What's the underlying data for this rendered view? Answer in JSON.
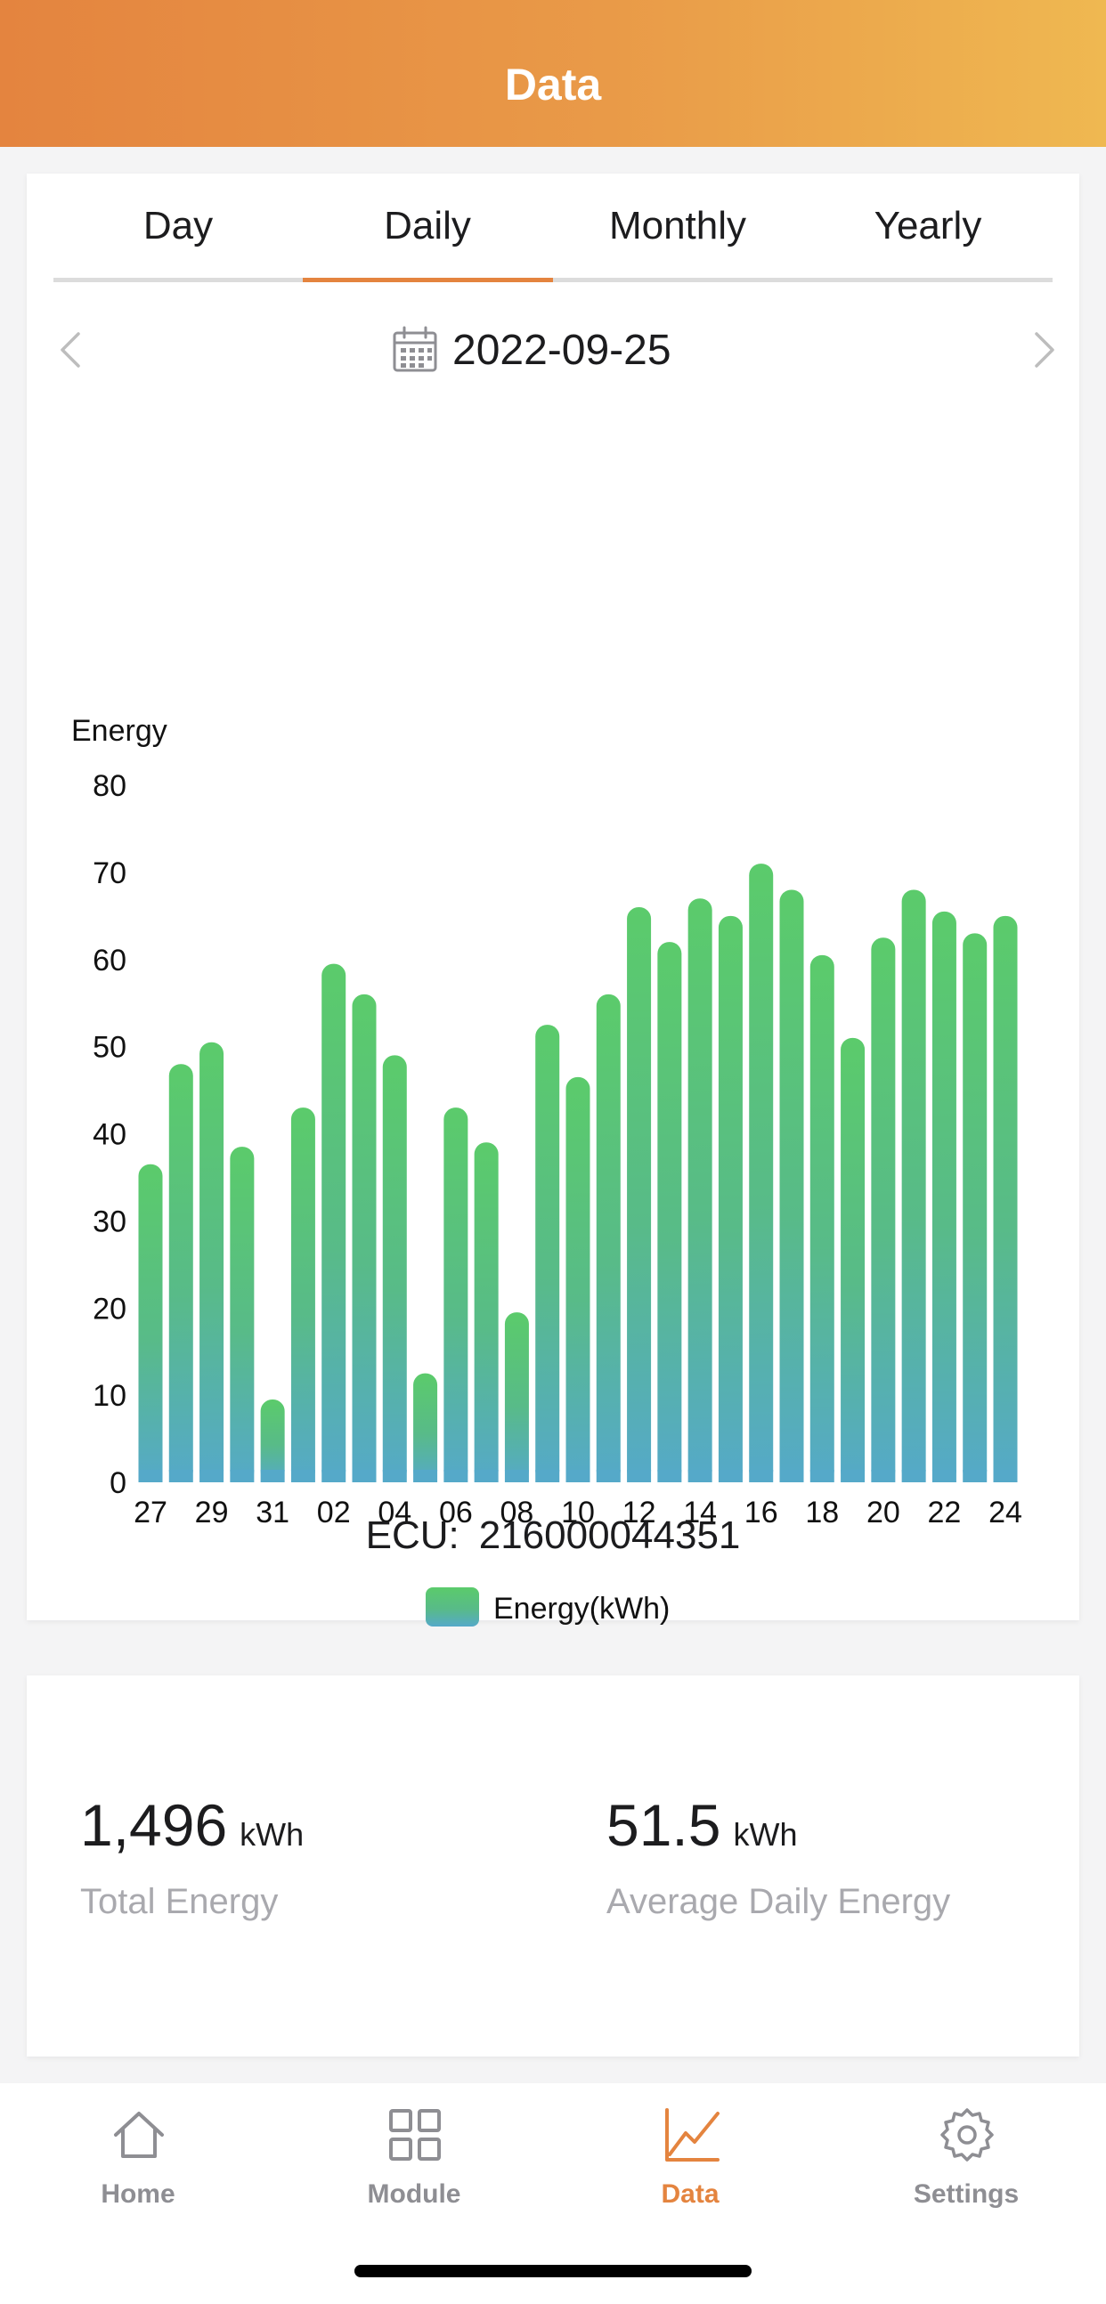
{
  "header": {
    "title": "Data"
  },
  "tabs": [
    {
      "label": "Day",
      "active": false
    },
    {
      "label": "Daily",
      "active": true
    },
    {
      "label": "Monthly",
      "active": false
    },
    {
      "label": "Yearly",
      "active": false
    }
  ],
  "date_nav": {
    "date": "2022-09-25"
  },
  "chart_data": {
    "type": "bar",
    "ylabel": "Energy",
    "ylim": [
      0,
      80
    ],
    "yticks": [
      0,
      10,
      20,
      30,
      40,
      50,
      60,
      70,
      80
    ],
    "categories": [
      "27",
      "28",
      "29",
      "30",
      "31",
      "01",
      "02",
      "03",
      "04",
      "05",
      "06",
      "07",
      "08",
      "09",
      "10",
      "11",
      "12",
      "13",
      "14",
      "15",
      "16",
      "17",
      "18",
      "19",
      "20",
      "21",
      "22",
      "23",
      "24"
    ],
    "xtick_labels": [
      "27",
      "29",
      "31",
      "02",
      "04",
      "06",
      "08",
      "10",
      "12",
      "14",
      "16",
      "18",
      "20",
      "22",
      "24"
    ],
    "series": [
      {
        "name": "Energy(kWh)",
        "values": [
          36.5,
          48,
          50.5,
          38.5,
          9.5,
          43,
          59.5,
          56,
          49,
          12.5,
          43,
          39,
          19.5,
          52.5,
          46.5,
          56,
          66,
          62,
          67,
          65,
          71,
          68,
          60.5,
          51,
          62.5,
          68,
          65.5,
          63,
          65
        ]
      }
    ],
    "colors": {
      "bar_top": "#5bcb6b",
      "bar_bottom": "#55a9c9"
    },
    "legend": "bottom-center",
    "grid": false
  },
  "ecu": {
    "label": "ECU:",
    "value": "216000044351"
  },
  "stats": {
    "total": {
      "value": "1,496",
      "unit": "kWh",
      "label": "Total Energy"
    },
    "average": {
      "value": "51.5",
      "unit": "kWh",
      "label": "Average Daily Energy"
    }
  },
  "bottom_nav": [
    {
      "label": "Home",
      "icon": "home-icon",
      "active": false
    },
    {
      "label": "Module",
      "icon": "module-grid-icon",
      "active": false
    },
    {
      "label": "Data",
      "icon": "chart-line-icon",
      "active": true
    },
    {
      "label": "Settings",
      "icon": "gear-icon",
      "active": false
    }
  ],
  "colors": {
    "accent": "#e4843f",
    "header_start": "#e4843f",
    "header_end": "#efb851",
    "inactive": "#8e8e93"
  }
}
